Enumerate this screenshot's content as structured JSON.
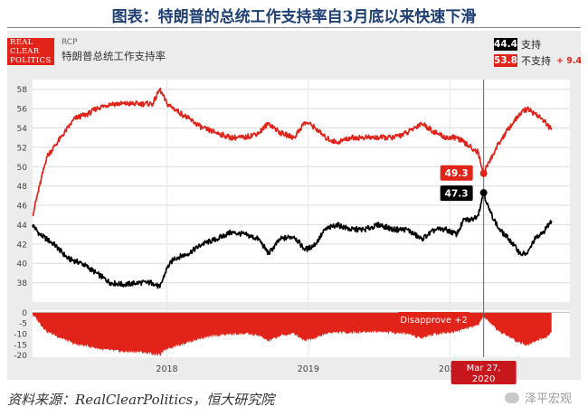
{
  "figure_title": "图表：特朗普的总统工作支持率自3月底以来快速下滑",
  "source": "资料来源：RealClearPolitics，恒大研究院",
  "watermark": "泽平宏观",
  "logo_lines": [
    "REAL",
    "CLEAR",
    "POLITICS"
  ],
  "header": {
    "small_label": "RCP",
    "chart_subtitle": "特朗普总统工作支持率"
  },
  "legend": [
    {
      "value": "44.4",
      "name": "支持",
      "color": "#000000",
      "delta": ""
    },
    {
      "value": "53.8",
      "name": "不支持",
      "color": "#e2231a",
      "delta": "+ 9.4"
    }
  ],
  "annotations": {
    "disapprove_value": "49.3",
    "approve_value": "47.3",
    "spread_tag": "Disapprove +2",
    "date_tag": "Mar 27, 2020"
  },
  "chart_data": {
    "type": "line",
    "x_tick_labels": [
      "2018",
      "2019",
      "2020"
    ],
    "y_ticks": [
      38,
      40,
      42,
      44,
      46,
      48,
      50,
      52,
      54,
      56,
      58
    ],
    "ylim": [
      36,
      59
    ],
    "lower_y_ticks": [
      0,
      -5,
      -10,
      -15,
      -20
    ],
    "lower_ylim": [
      -21,
      1
    ],
    "series": [
      {
        "name": "支持",
        "color": "#000000",
        "points": [
          [
            2017.05,
            44
          ],
          [
            2017.1,
            43
          ],
          [
            2017.2,
            42
          ],
          [
            2017.3,
            40.5
          ],
          [
            2017.4,
            40
          ],
          [
            2017.5,
            39
          ],
          [
            2017.55,
            38.5
          ],
          [
            2017.6,
            38
          ],
          [
            2017.7,
            37.8
          ],
          [
            2017.8,
            38
          ],
          [
            2017.9,
            38
          ],
          [
            2017.95,
            37.5
          ],
          [
            2018.0,
            39.5
          ],
          [
            2018.05,
            40.5
          ],
          [
            2018.15,
            41
          ],
          [
            2018.25,
            42
          ],
          [
            2018.35,
            42.5
          ],
          [
            2018.45,
            43.2
          ],
          [
            2018.55,
            43
          ],
          [
            2018.65,
            42.5
          ],
          [
            2018.72,
            41
          ],
          [
            2018.8,
            42.5
          ],
          [
            2018.9,
            42.8
          ],
          [
            2018.97,
            41.5
          ],
          [
            2019.0,
            41.5
          ],
          [
            2019.05,
            42
          ],
          [
            2019.12,
            43.5
          ],
          [
            2019.2,
            44
          ],
          [
            2019.3,
            43.5
          ],
          [
            2019.4,
            43.5
          ],
          [
            2019.5,
            44
          ],
          [
            2019.6,
            43.5
          ],
          [
            2019.7,
            43.5
          ],
          [
            2019.8,
            42.5
          ],
          [
            2019.85,
            43
          ],
          [
            2019.9,
            43.5
          ],
          [
            2019.97,
            43.5
          ],
          [
            2020.05,
            43
          ],
          [
            2020.1,
            44.5
          ],
          [
            2020.15,
            44.5
          ],
          [
            2020.2,
            45
          ],
          [
            2020.24,
            47.3
          ],
          [
            2020.28,
            45.5
          ],
          [
            2020.35,
            43.5
          ],
          [
            2020.42,
            42.5
          ],
          [
            2020.5,
            41
          ],
          [
            2020.55,
            41
          ],
          [
            2020.6,
            42.5
          ],
          [
            2020.65,
            43
          ],
          [
            2020.72,
            44.4
          ]
        ]
      },
      {
        "name": "不支持",
        "color": "#e2231a",
        "points": [
          [
            2017.05,
            45
          ],
          [
            2017.1,
            48
          ],
          [
            2017.15,
            51
          ],
          [
            2017.25,
            53
          ],
          [
            2017.35,
            55
          ],
          [
            2017.45,
            55.5
          ],
          [
            2017.5,
            56
          ],
          [
            2017.6,
            56.5
          ],
          [
            2017.7,
            56.5
          ],
          [
            2017.8,
            56.5
          ],
          [
            2017.9,
            56.5
          ],
          [
            2017.95,
            58
          ],
          [
            2018.0,
            56.5
          ],
          [
            2018.05,
            56
          ],
          [
            2018.15,
            55
          ],
          [
            2018.25,
            54
          ],
          [
            2018.35,
            53.5
          ],
          [
            2018.45,
            53
          ],
          [
            2018.55,
            53
          ],
          [
            2018.65,
            53.5
          ],
          [
            2018.72,
            54.5
          ],
          [
            2018.8,
            53.5
          ],
          [
            2018.9,
            53
          ],
          [
            2018.97,
            54.5
          ],
          [
            2019.0,
            54.5
          ],
          [
            2019.05,
            54
          ],
          [
            2019.12,
            53
          ],
          [
            2019.2,
            52.5
          ],
          [
            2019.3,
            53
          ],
          [
            2019.4,
            53
          ],
          [
            2019.5,
            53
          ],
          [
            2019.6,
            53
          ],
          [
            2019.7,
            53.5
          ],
          [
            2019.8,
            54.5
          ],
          [
            2019.85,
            54
          ],
          [
            2019.9,
            53.5
          ],
          [
            2019.97,
            53
          ],
          [
            2020.05,
            53
          ],
          [
            2020.1,
            52.5
          ],
          [
            2020.15,
            52
          ],
          [
            2020.2,
            51.5
          ],
          [
            2020.24,
            49.3
          ],
          [
            2020.28,
            50.5
          ],
          [
            2020.35,
            52.5
          ],
          [
            2020.42,
            54
          ],
          [
            2020.5,
            55.5
          ],
          [
            2020.55,
            56
          ],
          [
            2020.6,
            55.5
          ],
          [
            2020.65,
            55
          ],
          [
            2020.72,
            53.8
          ]
        ]
      }
    ],
    "spread_points": [
      [
        2017.05,
        -1
      ],
      [
        2017.1,
        -5
      ],
      [
        2017.15,
        -9
      ],
      [
        2017.25,
        -12
      ],
      [
        2017.35,
        -15
      ],
      [
        2017.45,
        -16
      ],
      [
        2017.55,
        -17.5
      ],
      [
        2017.7,
        -18.5
      ],
      [
        2017.8,
        -18.5
      ],
      [
        2017.95,
        -20
      ],
      [
        2018.0,
        -17
      ],
      [
        2018.1,
        -15
      ],
      [
        2018.25,
        -12
      ],
      [
        2018.4,
        -10.5
      ],
      [
        2018.55,
        -10
      ],
      [
        2018.65,
        -11
      ],
      [
        2018.72,
        -13.5
      ],
      [
        2018.8,
        -11
      ],
      [
        2018.9,
        -10
      ],
      [
        2018.97,
        -13
      ],
      [
        2019.05,
        -12
      ],
      [
        2019.15,
        -9.5
      ],
      [
        2019.3,
        -9.5
      ],
      [
        2019.5,
        -9
      ],
      [
        2019.6,
        -9.5
      ],
      [
        2019.7,
        -10
      ],
      [
        2019.8,
        -12
      ],
      [
        2019.9,
        -10
      ],
      [
        2020.0,
        -9.5
      ],
      [
        2020.1,
        -8
      ],
      [
        2020.2,
        -6
      ],
      [
        2020.24,
        -2
      ],
      [
        2020.28,
        -5
      ],
      [
        2020.35,
        -9
      ],
      [
        2020.42,
        -11.5
      ],
      [
        2020.5,
        -14.5
      ],
      [
        2020.55,
        -15
      ],
      [
        2020.62,
        -13
      ],
      [
        2020.68,
        -12
      ],
      [
        2020.72,
        -9.4
      ]
    ],
    "marker_x": 2020.24
  }
}
